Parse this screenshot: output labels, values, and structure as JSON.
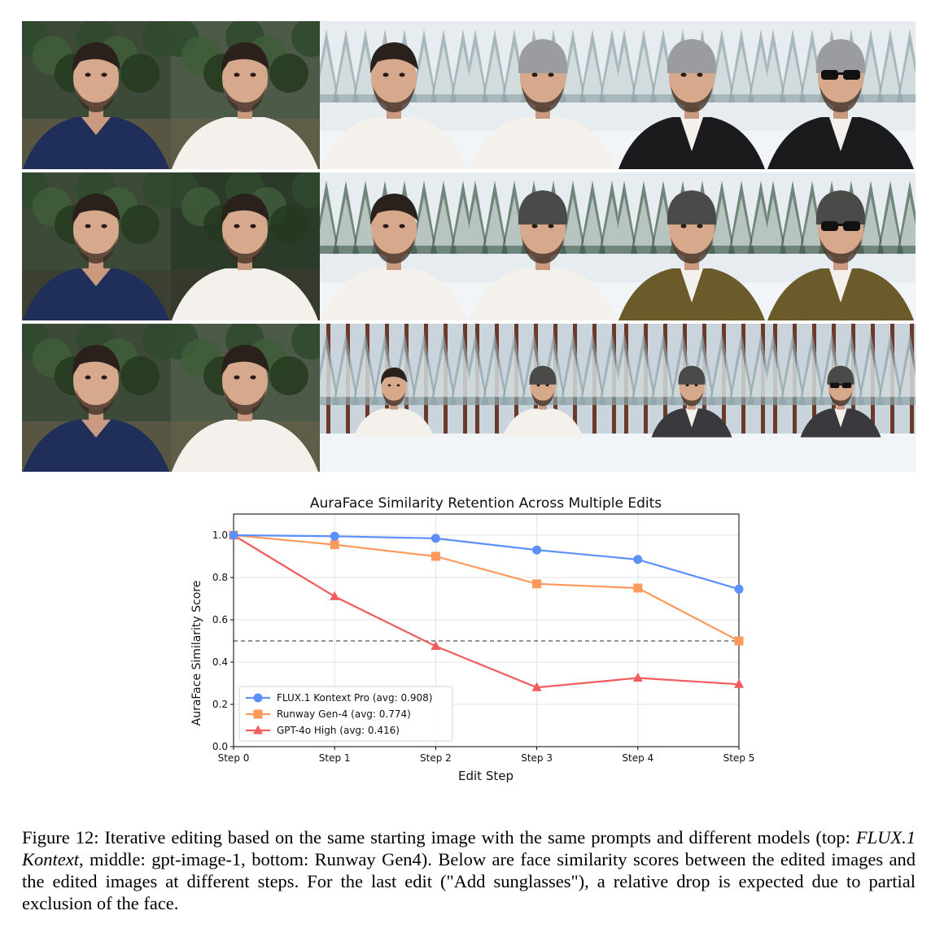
{
  "figure": {
    "rows": [
      {
        "model": "FLUX.1 Kontext",
        "variant": "top"
      },
      {
        "model": "gpt-image-1",
        "variant": "middle"
      },
      {
        "model": "Runway Gen4",
        "variant": "bottom"
      }
    ],
    "steps": [
      "Step 0",
      "Step 1",
      "Step 2",
      "Step 3",
      "Step 4",
      "Step 5"
    ],
    "edits": [
      "original",
      "white-shirt",
      "snow-forest",
      "beanie",
      "winter-jacket",
      "sunglasses"
    ]
  },
  "colors": {
    "flux": "#5b8ff9",
    "runway": "#fb9a5a",
    "gpt": "#f25c5c",
    "threshold": "#555555"
  },
  "chart_data": {
    "type": "line",
    "title": "AuraFace Similarity Retention Across Multiple Edits",
    "xlabel": "Edit Step",
    "ylabel": "AuraFace Similarity Score",
    "categories": [
      "Step 0",
      "Step 1",
      "Step 2",
      "Step 3",
      "Step 4",
      "Step 5"
    ],
    "ylim": [
      0,
      1.1
    ],
    "yticks": [
      "0.0",
      "0.2",
      "0.4",
      "0.6",
      "0.8",
      "1.0"
    ],
    "threshold": 0.5,
    "grid": true,
    "legend_position": "bottom-left",
    "series": [
      {
        "name": "FLUX.1 Kontext Pro (avg: 0.908)",
        "marker": "circle",
        "color": "#5b8ff9",
        "values": [
          1.0,
          0.995,
          0.985,
          0.93,
          0.885,
          0.745
        ]
      },
      {
        "name": "Runway Gen-4 (avg: 0.774)",
        "marker": "square",
        "color": "#fb9a5a",
        "values": [
          1.0,
          0.955,
          0.9,
          0.77,
          0.75,
          0.5
        ]
      },
      {
        "name": "GPT-4o High (avg: 0.416)",
        "marker": "triangle",
        "color": "#f25c5c",
        "values": [
          1.0,
          0.71,
          0.475,
          0.28,
          0.325,
          0.295
        ]
      }
    ]
  },
  "caption": {
    "label": "Figure 12:",
    "text_a": " Iterative editing based on the same starting image with the same prompts and different models (top: ",
    "model_a": "FLUX.1 Kontext",
    "text_b": ", middle: gpt-image-1, bottom: Runway Gen4).  Below are face similarity scores between the edited images and the edited images at different steps. For the last edit (\"Add sunglasses\"), a relative drop is expected due to partial exclusion of the face."
  }
}
